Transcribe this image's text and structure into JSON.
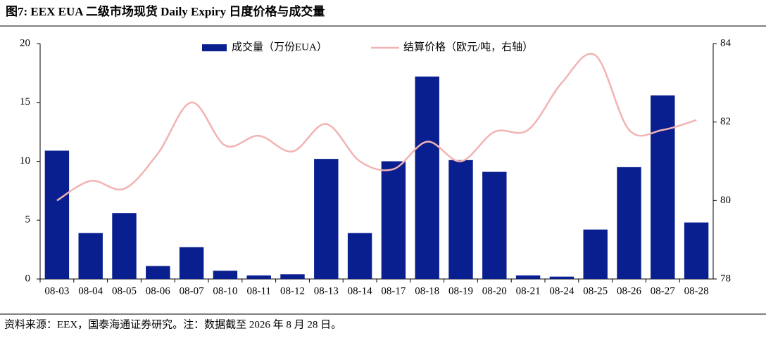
{
  "title": "图7:  EEX EUA 二级市场现货 Daily Expiry 日度价格与成交量",
  "source": "资料来源：EEX，国泰海通证券研究。注：数据截至 2026 年 8 月 28 日。",
  "chart_data": {
    "type": "bar-line",
    "categories": [
      "08-03",
      "08-04",
      "08-05",
      "08-06",
      "08-07",
      "08-10",
      "08-11",
      "08-12",
      "08-13",
      "08-14",
      "08-17",
      "08-18",
      "08-19",
      "08-20",
      "08-21",
      "08-24",
      "08-25",
      "08-26",
      "08-27",
      "08-28"
    ],
    "series": [
      {
        "name": "成交量（万份EUA）",
        "type": "bar",
        "color": "#0a1f8f",
        "values": [
          10.9,
          3.9,
          5.6,
          1.1,
          2.7,
          0.7,
          0.3,
          0.4,
          10.2,
          3.9,
          10.0,
          17.2,
          10.1,
          9.1,
          0.3,
          0.2,
          4.2,
          9.5,
          15.6,
          4.8
        ]
      },
      {
        "name": "结算价格（欧元/吨，右轴）",
        "type": "line",
        "axis": "y2",
        "color": "#f2b3b3",
        "values": [
          80.0,
          80.5,
          80.3,
          81.2,
          82.5,
          81.4,
          81.65,
          81.25,
          81.95,
          81.0,
          80.8,
          81.5,
          81.0,
          81.75,
          81.8,
          83.0,
          83.7,
          81.8,
          81.8,
          82.05
        ]
      }
    ],
    "ylim": [
      0,
      20
    ],
    "yticks": [
      0,
      5,
      10,
      15,
      20
    ],
    "y2lim": [
      78,
      84
    ],
    "y2ticks": [
      78,
      80,
      82,
      84
    ]
  }
}
